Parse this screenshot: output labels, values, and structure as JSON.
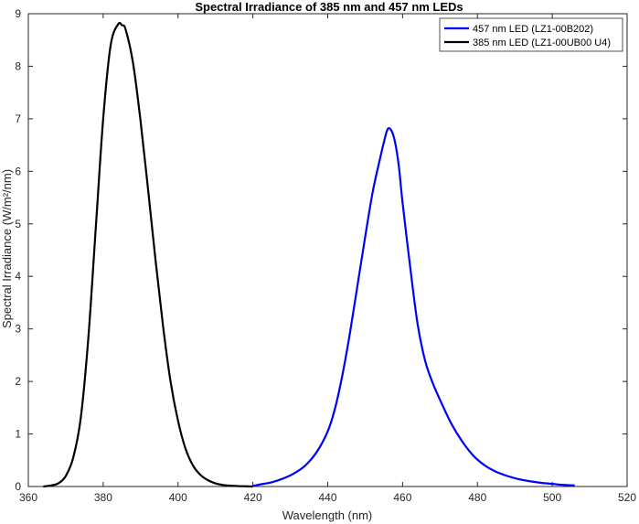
{
  "chart_data": {
    "type": "line",
    "title": "Spectral Irradiance of 385 nm and 457 nm LEDs",
    "xlabel": "Wavelength (nm)",
    "ylabel": "Spectral Irradiance (W/m²/nm)",
    "xlim": [
      360,
      520
    ],
    "ylim": [
      0,
      9
    ],
    "xticks": [
      360,
      380,
      400,
      420,
      440,
      460,
      480,
      500,
      520
    ],
    "yticks": [
      0,
      1,
      2,
      3,
      4,
      5,
      6,
      7,
      8,
      9
    ],
    "grid": false,
    "legend_position": "top-right",
    "series": [
      {
        "name": "457 nm LED (LZ1-00B202)",
        "color": "#0000ff",
        "x": [
          420,
          422,
          425,
          428,
          431,
          434,
          437,
          440,
          442,
          444,
          446,
          448,
          450,
          452,
          454,
          455,
          456,
          457,
          458,
          459,
          460,
          462,
          464,
          466,
          468,
          470,
          473,
          476,
          479,
          482,
          485,
          488,
          491,
          494,
          497,
          500,
          503,
          506
        ],
        "y": [
          0.01,
          0.04,
          0.08,
          0.15,
          0.25,
          0.4,
          0.65,
          1.05,
          1.5,
          2.15,
          2.95,
          3.85,
          4.75,
          5.6,
          6.25,
          6.55,
          6.8,
          6.78,
          6.55,
          6.1,
          5.4,
          4.2,
          3.1,
          2.4,
          1.98,
          1.65,
          1.2,
          0.85,
          0.58,
          0.4,
          0.28,
          0.2,
          0.14,
          0.1,
          0.07,
          0.05,
          0.03,
          0.02
        ]
      },
      {
        "name": "385 nm LED (LZ1-00UB00 U4)",
        "color": "#000000",
        "x": [
          364,
          366,
          368,
          370,
          372,
          374,
          376,
          378,
          380,
          382,
          384,
          385,
          386,
          388,
          390,
          392,
          394,
          396,
          398,
          400,
          402,
          404,
          406,
          408,
          410,
          412,
          414,
          416,
          418,
          420
        ],
        "y": [
          0.0,
          0.02,
          0.06,
          0.2,
          0.55,
          1.3,
          2.8,
          4.9,
          7.0,
          8.4,
          8.8,
          8.78,
          8.7,
          8.05,
          6.95,
          5.65,
          4.3,
          3.05,
          2.0,
          1.25,
          0.72,
          0.4,
          0.22,
          0.12,
          0.06,
          0.03,
          0.015,
          0.008,
          0.004,
          0.0
        ]
      }
    ]
  }
}
